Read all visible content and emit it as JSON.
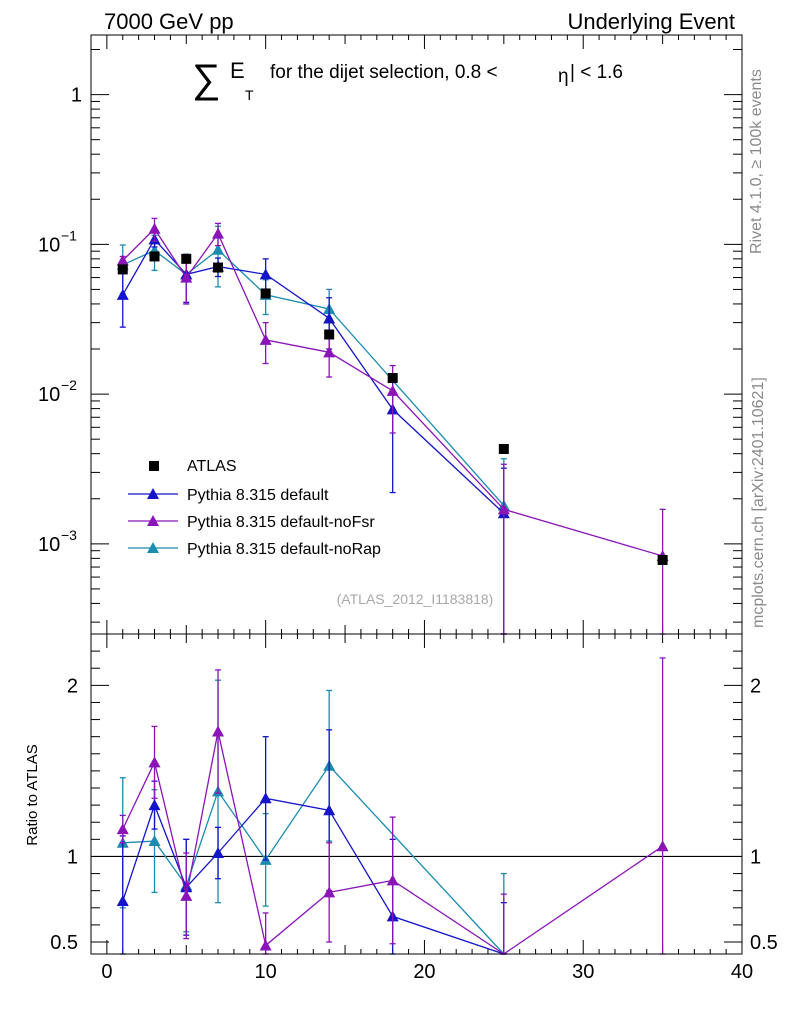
{
  "header": {
    "left": "7000 GeV pp",
    "right": "Underlying Event"
  },
  "side_labels": {
    "rivet": "Rivet 4.1.0, ≥ 100k events",
    "mcplots": "mcplots.cern.ch [arXiv:2401.10621]"
  },
  "chart_data": {
    "type": "line",
    "title": {
      "sum": "∑",
      "symbol": "E",
      "subscript": "T",
      "text": "for the dijet selection, 0.8 <",
      "eta": "η",
      "rest": "| < 1.6"
    },
    "watermark": "(ATLAS_2012_I1183818)",
    "xlim": [
      -1,
      40
    ],
    "ylim_main": [
      0.00025,
      2.5
    ],
    "ylim_ratio": [
      0.43,
      2.3
    ],
    "x_ticks": [
      {
        "value": 0,
        "label": "0"
      },
      {
        "value": 10,
        "label": "10"
      },
      {
        "value": 20,
        "label": "20"
      },
      {
        "value": 30,
        "label": "30"
      },
      {
        "value": 40,
        "label": "40"
      }
    ],
    "y_ticks_main": [
      {
        "value": 1,
        "label": "1",
        "base": "",
        "exp": ""
      },
      {
        "value": 0.1,
        "label": "",
        "base": "10",
        "exp": "−1"
      },
      {
        "value": 0.01,
        "label": "",
        "base": "10",
        "exp": "−2"
      },
      {
        "value": 0.001,
        "label": "",
        "base": "10",
        "exp": "−3"
      }
    ],
    "y_ticks_ratio": [
      {
        "value": 2,
        "label": "2"
      },
      {
        "value": 1,
        "label": "1"
      },
      {
        "value": 0.5,
        "label": "0.5"
      }
    ],
    "ratio_ylabel": "Ratio to ATLAS",
    "reference": {
      "name": "ATLAS",
      "color": "#000000",
      "x": [
        1,
        3,
        5,
        7,
        10,
        14,
        18,
        25,
        35
      ],
      "y": [
        0.068,
        0.083,
        0.08,
        0.07,
        0.047,
        0.025,
        0.0128,
        0.0043,
        0.00078
      ]
    },
    "series": [
      {
        "name": "Pythia 8.315 default",
        "color": "#1414c8",
        "x": [
          1,
          3,
          5,
          7,
          10,
          14,
          18,
          25,
          35
        ],
        "y": [
          0.046,
          0.108,
          0.063,
          0.071,
          0.063,
          0.032,
          0.0079,
          0.0016,
          null
        ],
        "err": [
          0.018,
          0.012,
          0.022,
          0.01,
          0.017,
          0.012,
          0.0057,
          0.0016,
          null
        ],
        "ratio": [
          0.74,
          1.3,
          0.82,
          1.02,
          1.34,
          1.27,
          0.65,
          0.36,
          null
        ],
        "ratio_err": [
          0.38,
          0.14,
          0.28,
          0.15,
          0.36,
          0.47,
          0.45,
          0.37,
          null
        ]
      },
      {
        "name": "Pythia 8.315 default-noFsr",
        "color": "#8a14b8",
        "x": [
          1,
          3,
          5,
          7,
          10,
          14,
          18,
          25,
          35
        ],
        "y": [
          0.078,
          0.127,
          0.06,
          0.118,
          0.023,
          0.019,
          0.0105,
          0.0017,
          0.00083
        ],
        "err": [
          0.005,
          0.022,
          0.02,
          0.02,
          0.007,
          0.006,
          0.005,
          0.0017,
          0.00087
        ],
        "ratio": [
          1.16,
          1.55,
          0.77,
          1.73,
          0.48,
          0.79,
          0.86,
          0.39,
          1.06
        ],
        "ratio_err": [
          0.08,
          0.21,
          0.25,
          0.36,
          0.19,
          0.29,
          0.37,
          0.39,
          1.1
        ]
      },
      {
        "name": "Pythia 8.315 default-noRap",
        "color": "#1a8cb0",
        "x": [
          1,
          3,
          5,
          7,
          10,
          14,
          18,
          25,
          35
        ],
        "y": [
          0.073,
          0.091,
          0.063,
          0.092,
          0.046,
          0.037,
          null,
          0.0018,
          null
        ],
        "err": [
          0.026,
          0.024,
          0.023,
          0.04,
          0.012,
          0.013,
          null,
          0.0019,
          null
        ],
        "ratio": [
          1.08,
          1.09,
          0.83,
          1.38,
          0.98,
          1.53,
          null,
          0.4,
          null
        ],
        "ratio_err": [
          0.38,
          0.3,
          0.27,
          0.65,
          0.27,
          0.44,
          null,
          0.5,
          null
        ]
      }
    ]
  }
}
